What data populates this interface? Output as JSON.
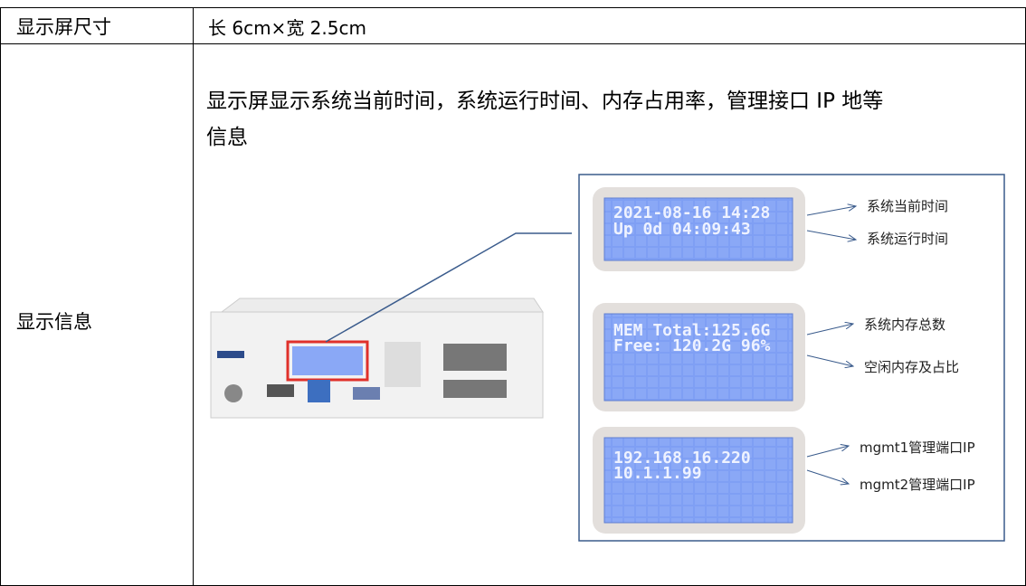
{
  "table": {
    "rows": [
      [
        "显示屏尺寸",
        "长 6cm×宽 2.5cm"
      ],
      [
        "显示信息",
        "显示屏显示系统当前时间，系统运行时间、内存占用率，管理接口 IP 地等信息"
      ]
    ]
  },
  "figure": {
    "panels": [
      {
        "lines": [
          "2021-08-16 14:28",
          " Up 0d 04:09:43"
        ],
        "labels": [
          "系统当前时间",
          "系统运行时间"
        ]
      },
      {
        "lines": [
          "MEM Total:125.6G",
          "Free: 120.2G 96%"
        ],
        "labels": [
          "系统内存总数",
          "空闲内存及占比"
        ]
      },
      {
        "lines": [
          "192.168.16.220",
          "10.1.1.99"
        ],
        "labels": [
          "mgmt1管理端口IP",
          "mgmt2管理端口IP"
        ]
      }
    ]
  }
}
